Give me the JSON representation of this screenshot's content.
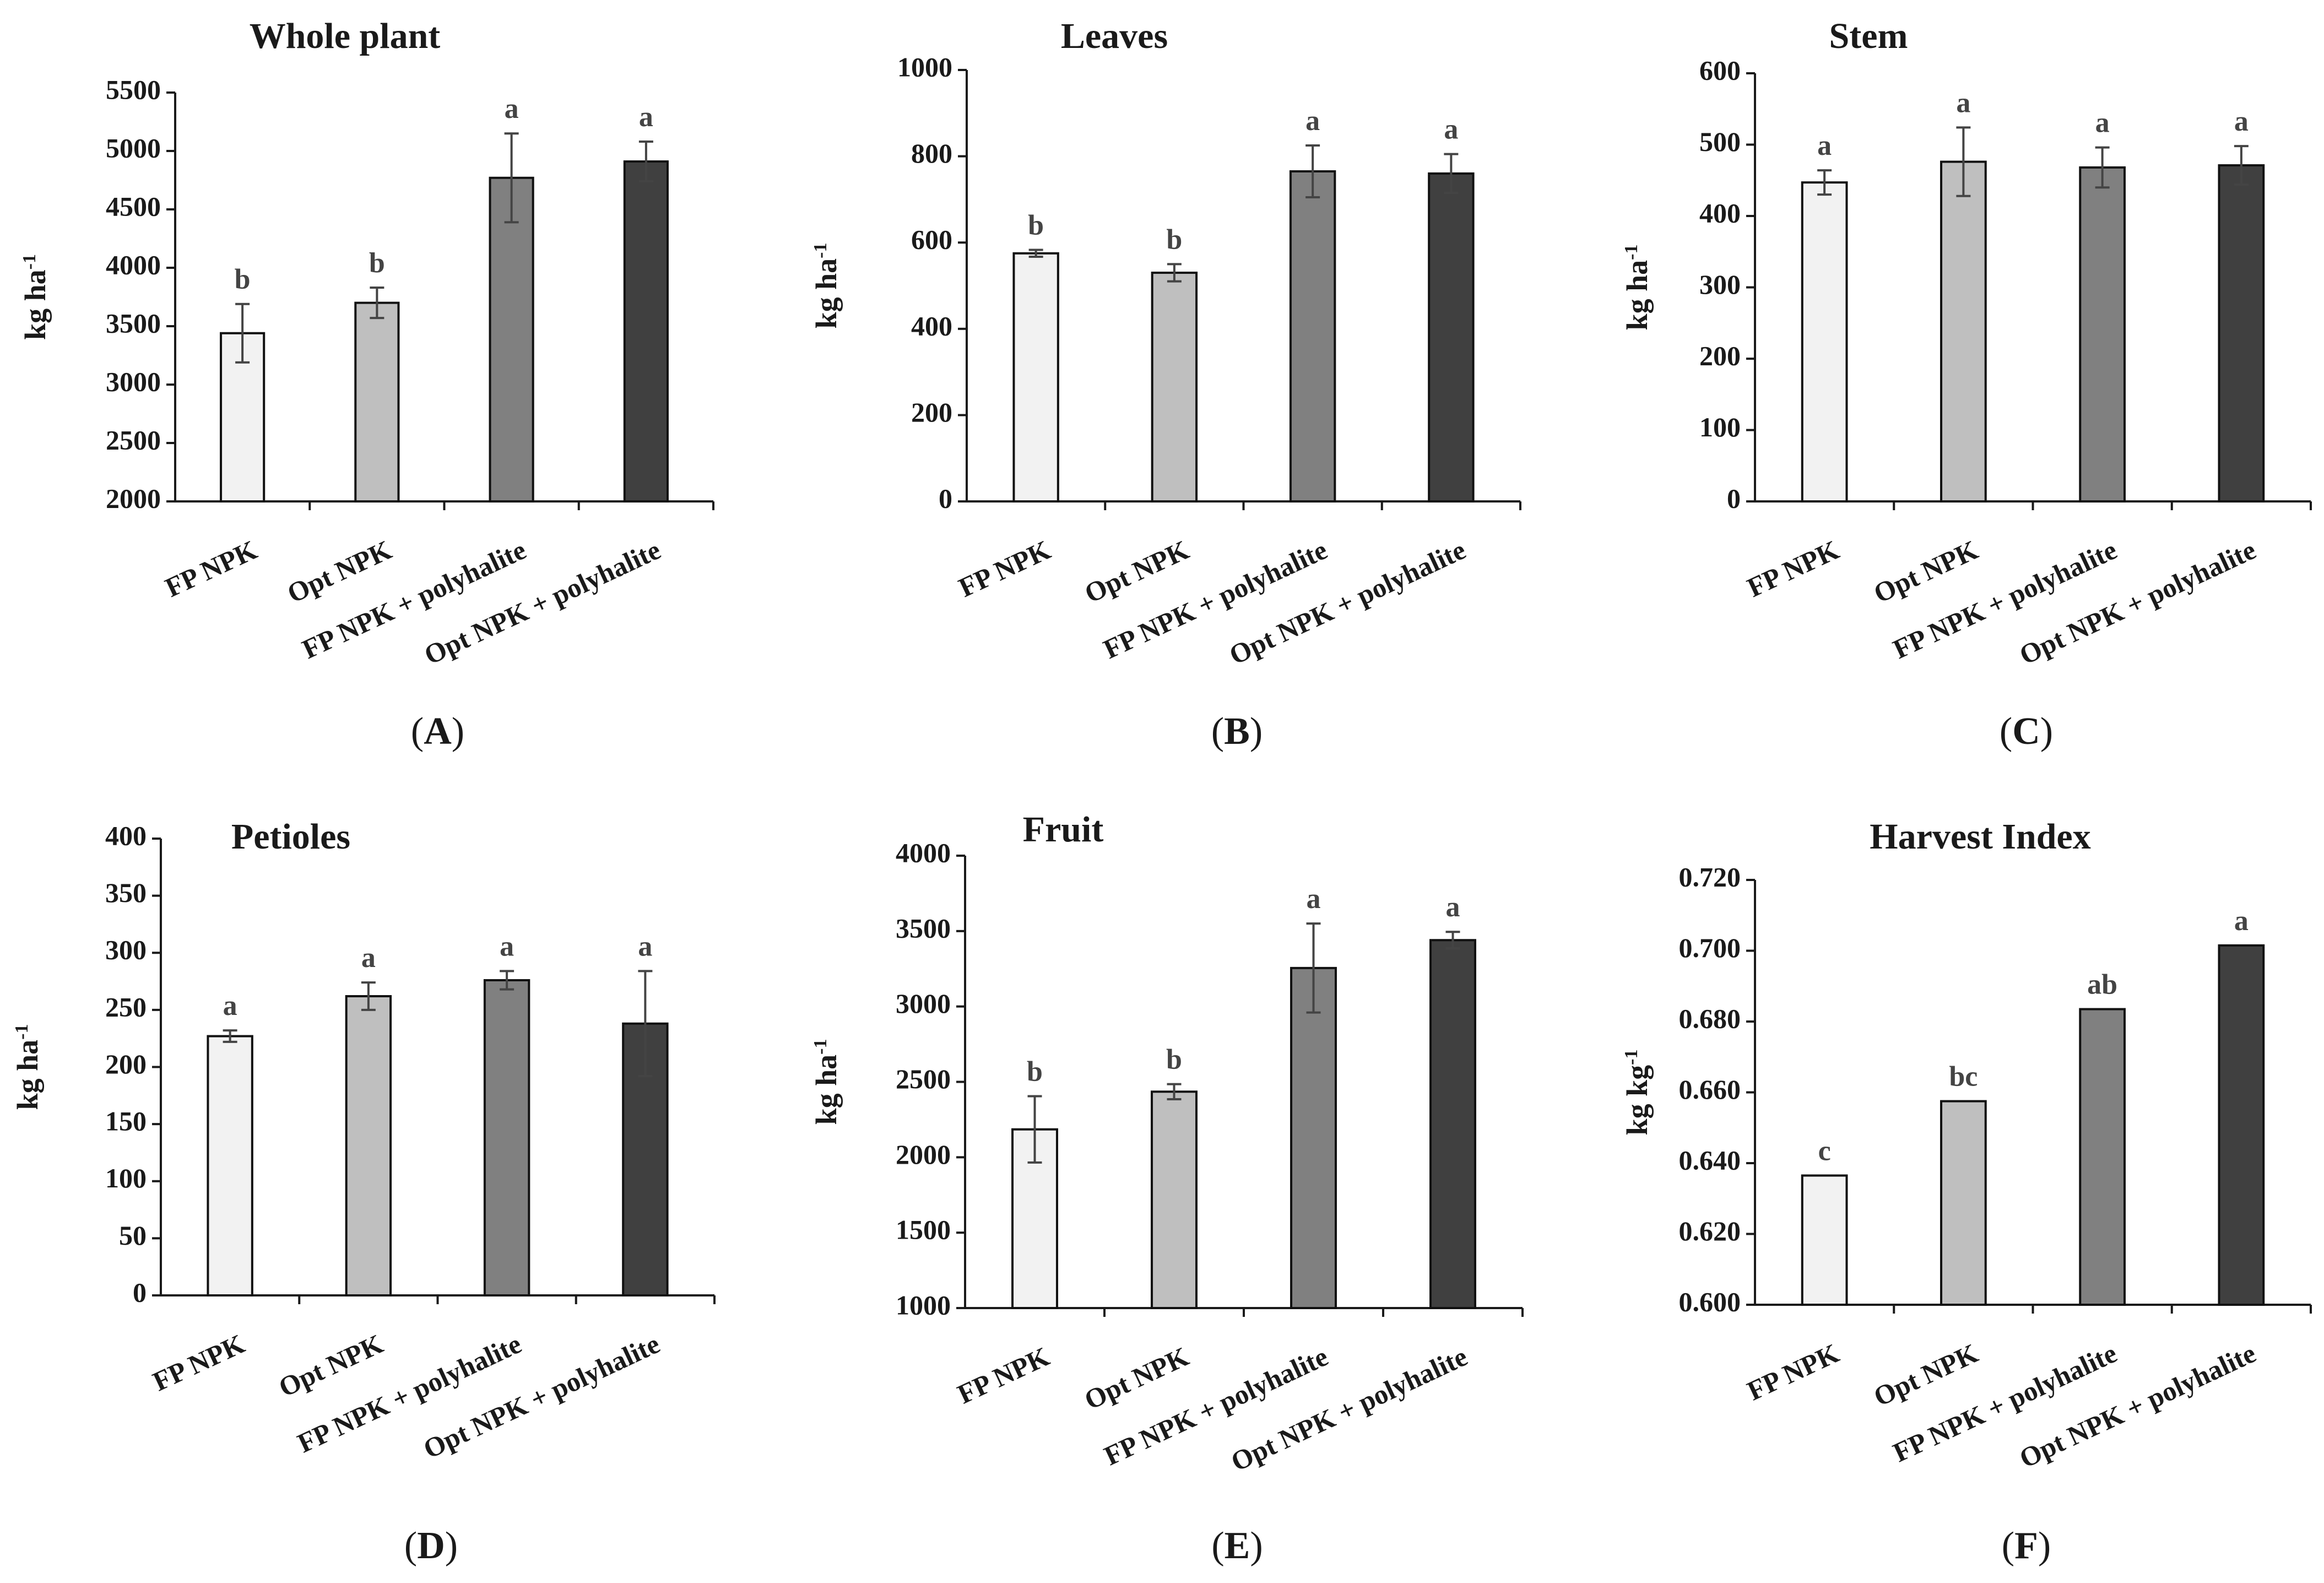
{
  "figure": {
    "colors": {
      "FP NPK": "#f2f2f2",
      "Opt NPK": "#bfbfbf",
      "FP NPK + polyhalite": "#808080",
      "Opt NPK + polyhalite": "#404040",
      "axis": "#1a1a1a",
      "error_bar": "#444444"
    }
  },
  "chart_data": [
    {
      "type": "bar",
      "panel": "A",
      "title": "Whole plant",
      "ylabel": "kg ha-1",
      "ylabel_main": "kg ha",
      "ylabel_sup": "-1",
      "categories": [
        "FP NPK",
        "Opt NPK",
        "FP NPK + polyhalite",
        "Opt NPK + polyhalite"
      ],
      "values": [
        3440,
        3700,
        4770,
        4910
      ],
      "errors": [
        250,
        130,
        380,
        170
      ],
      "letters": [
        "b",
        "b",
        "a",
        "a"
      ],
      "ylim": [
        2000,
        5500
      ],
      "yticks": [
        2000,
        2500,
        3000,
        3500,
        4000,
        4500,
        5000,
        5500
      ],
      "ytick_labels": [
        "2000",
        "2500",
        "3000",
        "3500",
        "4000",
        "4500",
        "5000",
        "5500"
      ]
    },
    {
      "type": "bar",
      "panel": "B",
      "title": "Leaves",
      "ylabel": "kg ha-1",
      "ylabel_main": "kg ha",
      "ylabel_sup": "-1",
      "categories": [
        "FP NPK",
        "Opt NPK",
        "FP NPK + polyhalite",
        "Opt NPK + polyhalite"
      ],
      "values": [
        575,
        530,
        765,
        760
      ],
      "errors": [
        8,
        20,
        60,
        45
      ],
      "letters": [
        "b",
        "b",
        "a",
        "a"
      ],
      "ylim": [
        0,
        1000
      ],
      "yticks": [
        0,
        200,
        400,
        600,
        800,
        1000
      ],
      "ytick_labels": [
        "0",
        "200",
        "400",
        "600",
        "800",
        "1000"
      ]
    },
    {
      "type": "bar",
      "panel": "C",
      "title": "Stem",
      "ylabel": "kg ha-1",
      "ylabel_main": "kg ha",
      "ylabel_sup": "-1",
      "categories": [
        "FP NPK",
        "Opt NPK",
        "FP NPK + polyhalite",
        "Opt NPK + polyhalite"
      ],
      "values": [
        447,
        476,
        468,
        471
      ],
      "errors": [
        17,
        48,
        28,
        27
      ],
      "letters": [
        "a",
        "a",
        "a",
        "a"
      ],
      "ylim": [
        0,
        600
      ],
      "yticks": [
        0,
        100,
        200,
        300,
        400,
        500,
        600
      ],
      "ytick_labels": [
        "0",
        "100",
        "200",
        "300",
        "400",
        "500",
        "600"
      ]
    },
    {
      "type": "bar",
      "panel": "D",
      "title": "Petioles",
      "ylabel": "kg ha-1",
      "ylabel_main": "kg ha",
      "ylabel_sup": "-1",
      "categories": [
        "FP NPK",
        "Opt NPK",
        "FP NPK + polyhalite",
        "Opt NPK + polyhalite"
      ],
      "values": [
        227,
        262,
        276,
        238
      ],
      "errors": [
        5,
        12,
        8,
        46
      ],
      "letters": [
        "a",
        "a",
        "a",
        "a"
      ],
      "ylim": [
        0,
        400
      ],
      "yticks": [
        0,
        50,
        100,
        150,
        200,
        250,
        300,
        350,
        400
      ],
      "ytick_labels": [
        "0",
        "50",
        "100",
        "150",
        "200",
        "250",
        "300",
        "350",
        "400"
      ]
    },
    {
      "type": "bar",
      "panel": "E",
      "title": "Fruit",
      "ylabel": "kg ha-1",
      "ylabel_main": "kg ha",
      "ylabel_sup": "-1",
      "categories": [
        "FP NPK",
        "Opt NPK",
        "FP NPK + polyhalite",
        "Opt NPK + polyhalite"
      ],
      "values": [
        2185,
        2435,
        3255,
        3440
      ],
      "errors": [
        220,
        50,
        295,
        55
      ],
      "letters": [
        "b",
        "b",
        "a",
        "a"
      ],
      "ylim": [
        1000,
        4000
      ],
      "yticks": [
        1000,
        1500,
        2000,
        2500,
        3000,
        3500,
        4000
      ],
      "ytick_labels": [
        "1000",
        "1500",
        "2000",
        "2500",
        "3000",
        "3500",
        "4000"
      ]
    },
    {
      "type": "bar",
      "panel": "F",
      "title": "Harvest Index",
      "ylabel": "kg kg-1",
      "ylabel_main": "kg kg",
      "ylabel_sup": "-1",
      "categories": [
        "FP NPK",
        "Opt NPK",
        "FP NPK + polyhalite",
        "Opt NPK + polyhalite"
      ],
      "values": [
        0.6365,
        0.6575,
        0.6835,
        0.7015
      ],
      "errors": [
        0,
        0,
        0,
        0
      ],
      "letters": [
        "c",
        "bc",
        "ab",
        "a"
      ],
      "ylim": [
        0.6,
        0.72
      ],
      "yticks": [
        0.6,
        0.62,
        0.64,
        0.66,
        0.68,
        0.7,
        0.72
      ],
      "ytick_labels": [
        "0.600",
        "0.620",
        "0.640",
        "0.660",
        "0.680",
        "0.700",
        "0.720"
      ]
    }
  ]
}
